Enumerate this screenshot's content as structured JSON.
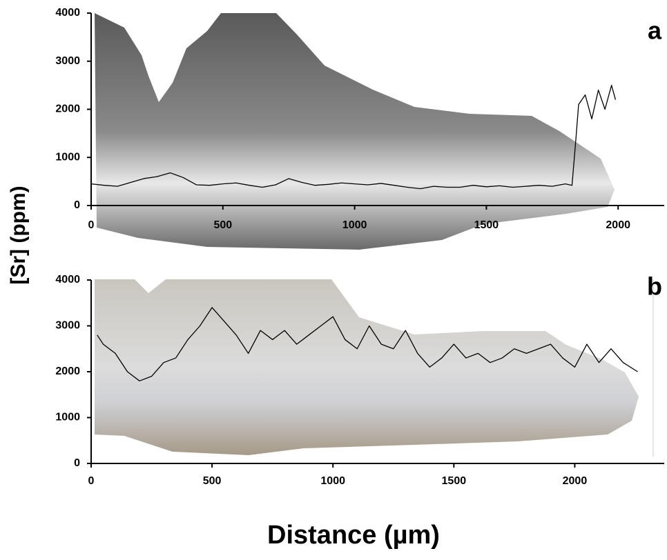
{
  "figure": {
    "ylabel": "[Sr] (ppm)",
    "xlabel": "Distance (µm)"
  },
  "chart_data": [
    {
      "type": "line",
      "panel_label": "a",
      "x": [
        0,
        50,
        100,
        150,
        200,
        250,
        300,
        350,
        400,
        450,
        500,
        550,
        600,
        650,
        700,
        750,
        800,
        850,
        900,
        950,
        1000,
        1050,
        1100,
        1150,
        1200,
        1250,
        1300,
        1350,
        1400,
        1450,
        1500,
        1550,
        1600,
        1650,
        1700,
        1750,
        1800,
        1825,
        1840,
        1850,
        1875,
        1900,
        1925,
        1950,
        1975,
        1990
      ],
      "series": [
        {
          "color": "#000000",
          "values": [
            450,
            420,
            400,
            480,
            560,
            600,
            680,
            580,
            430,
            420,
            450,
            470,
            420,
            380,
            430,
            560,
            480,
            420,
            440,
            470,
            450,
            430,
            460,
            420,
            380,
            350,
            400,
            380,
            380,
            420,
            390,
            410,
            380,
            400,
            420,
            400,
            450,
            420,
            1400,
            2100,
            2300,
            1800,
            2400,
            2000,
            2500,
            2200
          ]
        }
      ],
      "xlim": [
        0,
        2175
      ],
      "ylim": [
        0,
        4000
      ],
      "xticks": [
        0,
        500,
        1000,
        1500,
        2000
      ],
      "yticks": [
        0,
        1000,
        2000,
        3000,
        4000
      ]
    },
    {
      "type": "line",
      "panel_label": "b",
      "x": [
        25,
        50,
        100,
        150,
        200,
        250,
        300,
        350,
        400,
        450,
        500,
        550,
        600,
        650,
        700,
        750,
        800,
        850,
        900,
        950,
        1000,
        1050,
        1100,
        1150,
        1200,
        1250,
        1300,
        1350,
        1400,
        1450,
        1500,
        1550,
        1600,
        1650,
        1700,
        1750,
        1800,
        1850,
        1900,
        1950,
        2000,
        2050,
        2100,
        2150,
        2200,
        2260
      ],
      "series": [
        {
          "color": "#000000",
          "values": [
            2800,
            2600,
            2400,
            2000,
            1800,
            1900,
            2200,
            2300,
            2700,
            3000,
            3400,
            3100,
            2800,
            2400,
            2900,
            2700,
            2900,
            2600,
            2800,
            3000,
            3200,
            2700,
            2500,
            3000,
            2600,
            2500,
            2900,
            2400,
            2100,
            2300,
            2600,
            2300,
            2400,
            2200,
            2300,
            2500,
            2400,
            2500,
            2600,
            2300,
            2100,
            2600,
            2200,
            2500,
            2200,
            2000
          ]
        }
      ],
      "xlim": [
        0,
        2370
      ],
      "ylim": [
        0,
        4000
      ],
      "xticks": [
        0,
        500,
        1000,
        1500,
        2000
      ],
      "yticks": [
        0,
        1000,
        2000,
        3000,
        4000
      ]
    }
  ]
}
